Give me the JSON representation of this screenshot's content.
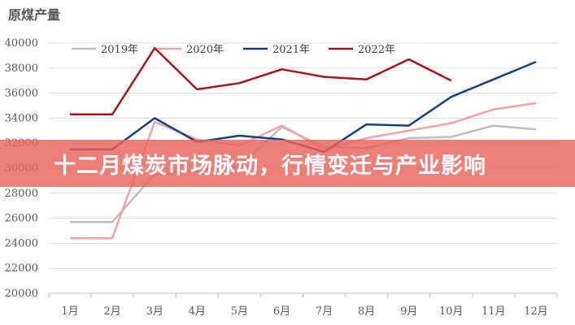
{
  "banner": {
    "headline": "十二月煤炭市场脉动，行情变迁与产业影响"
  },
  "chart_data": {
    "type": "line",
    "title": "原煤产量",
    "categories": [
      "1月",
      "2月",
      "3月",
      "4月",
      "5月",
      "6月",
      "7月",
      "8月",
      "9月",
      "10月",
      "11月",
      "12月"
    ],
    "yticks": [
      "20000",
      "22000",
      "24000",
      "26000",
      "28000",
      "30000",
      "32000",
      "34000",
      "36000",
      "38000",
      "40000"
    ],
    "ylim": [
      20000,
      40000
    ],
    "legend_position": "top",
    "series": [
      {
        "name": "2019年",
        "color": "#bdbdbd",
        "values": [
          25700,
          25700,
          29500,
          29800,
          30100,
          33300,
          31700,
          31600,
          32400,
          32500,
          33400,
          33100
        ]
      },
      {
        "name": "2020年",
        "color": "#f0a3a7",
        "values": [
          24400,
          24400,
          33700,
          32300,
          31800,
          33400,
          31500,
          32400,
          33000,
          33600,
          34700,
          35200
        ]
      },
      {
        "name": "2021年",
        "color": "#173f7f",
        "values": [
          31500,
          31500,
          34000,
          32100,
          32600,
          32300,
          31300,
          33500,
          33400,
          35700,
          37100,
          38500
        ]
      },
      {
        "name": "2022年",
        "color": "#a8141c",
        "values": [
          34300,
          34300,
          39600,
          36300,
          36800,
          37900,
          37300,
          37100,
          38700,
          37000,
          null,
          null
        ]
      }
    ]
  }
}
